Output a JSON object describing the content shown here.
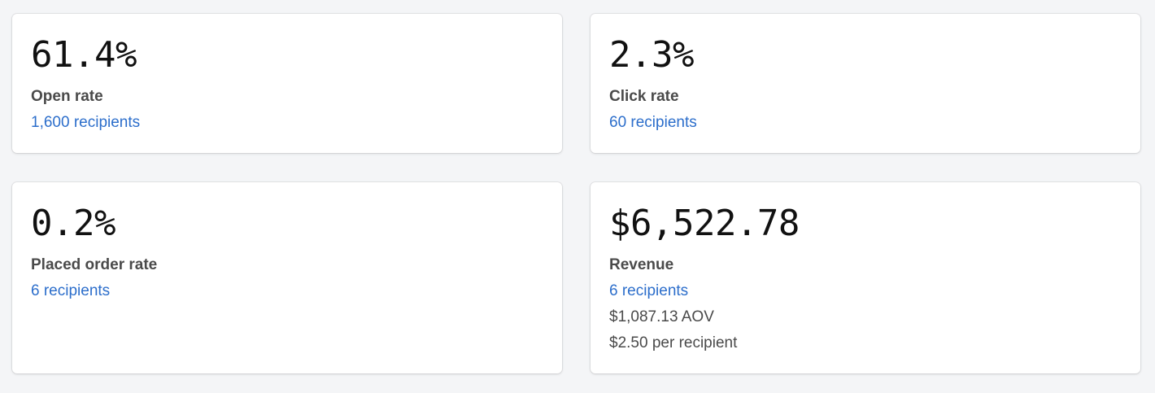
{
  "colors": {
    "background": "#f4f5f7",
    "card": "#ffffff",
    "link": "#2c6ecb",
    "label": "#4a4a4a",
    "value": "#111111"
  },
  "cards": [
    {
      "value": "61.4%",
      "label": "Open rate",
      "recipients": "1,600 recipients"
    },
    {
      "value": "2.3%",
      "label": "Click rate",
      "recipients": "60 recipients"
    },
    {
      "value": "0.2%",
      "label": "Placed order rate",
      "recipients": "6 recipients"
    },
    {
      "value": "$6,522.78",
      "label": "Revenue",
      "recipients": "6 recipients",
      "aov": "$1,087.13 AOV",
      "per_recipient": "$2.50 per recipient"
    }
  ]
}
